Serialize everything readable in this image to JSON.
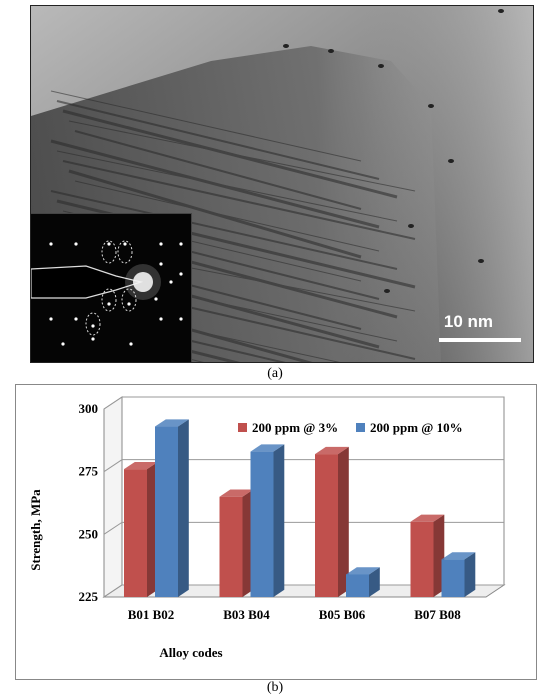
{
  "figure": {
    "caption_a": "(a)",
    "caption_b": "(b)",
    "scale_bar_label": "10 nm"
  },
  "chart_data": {
    "type": "bar",
    "categories": [
      "B01 B02",
      "B03 B04",
      "B05 B06",
      "B07 B08"
    ],
    "series": [
      {
        "name": "200 ppm @ 3%",
        "color": "#c0504d",
        "values": [
          276,
          265,
          282,
          255
        ]
      },
      {
        "name": "200 ppm @ 10%",
        "color": "#4f81bd",
        "values": [
          293,
          283,
          234,
          240
        ]
      }
    ],
    "xlabel": "Alloy codes",
    "ylabel": "Strength, MPa",
    "ylim": [
      225,
      300
    ],
    "yticks": [
      "225",
      "250",
      "275",
      "300"
    ],
    "grid": true,
    "legend": "top-right",
    "style": "3d"
  }
}
